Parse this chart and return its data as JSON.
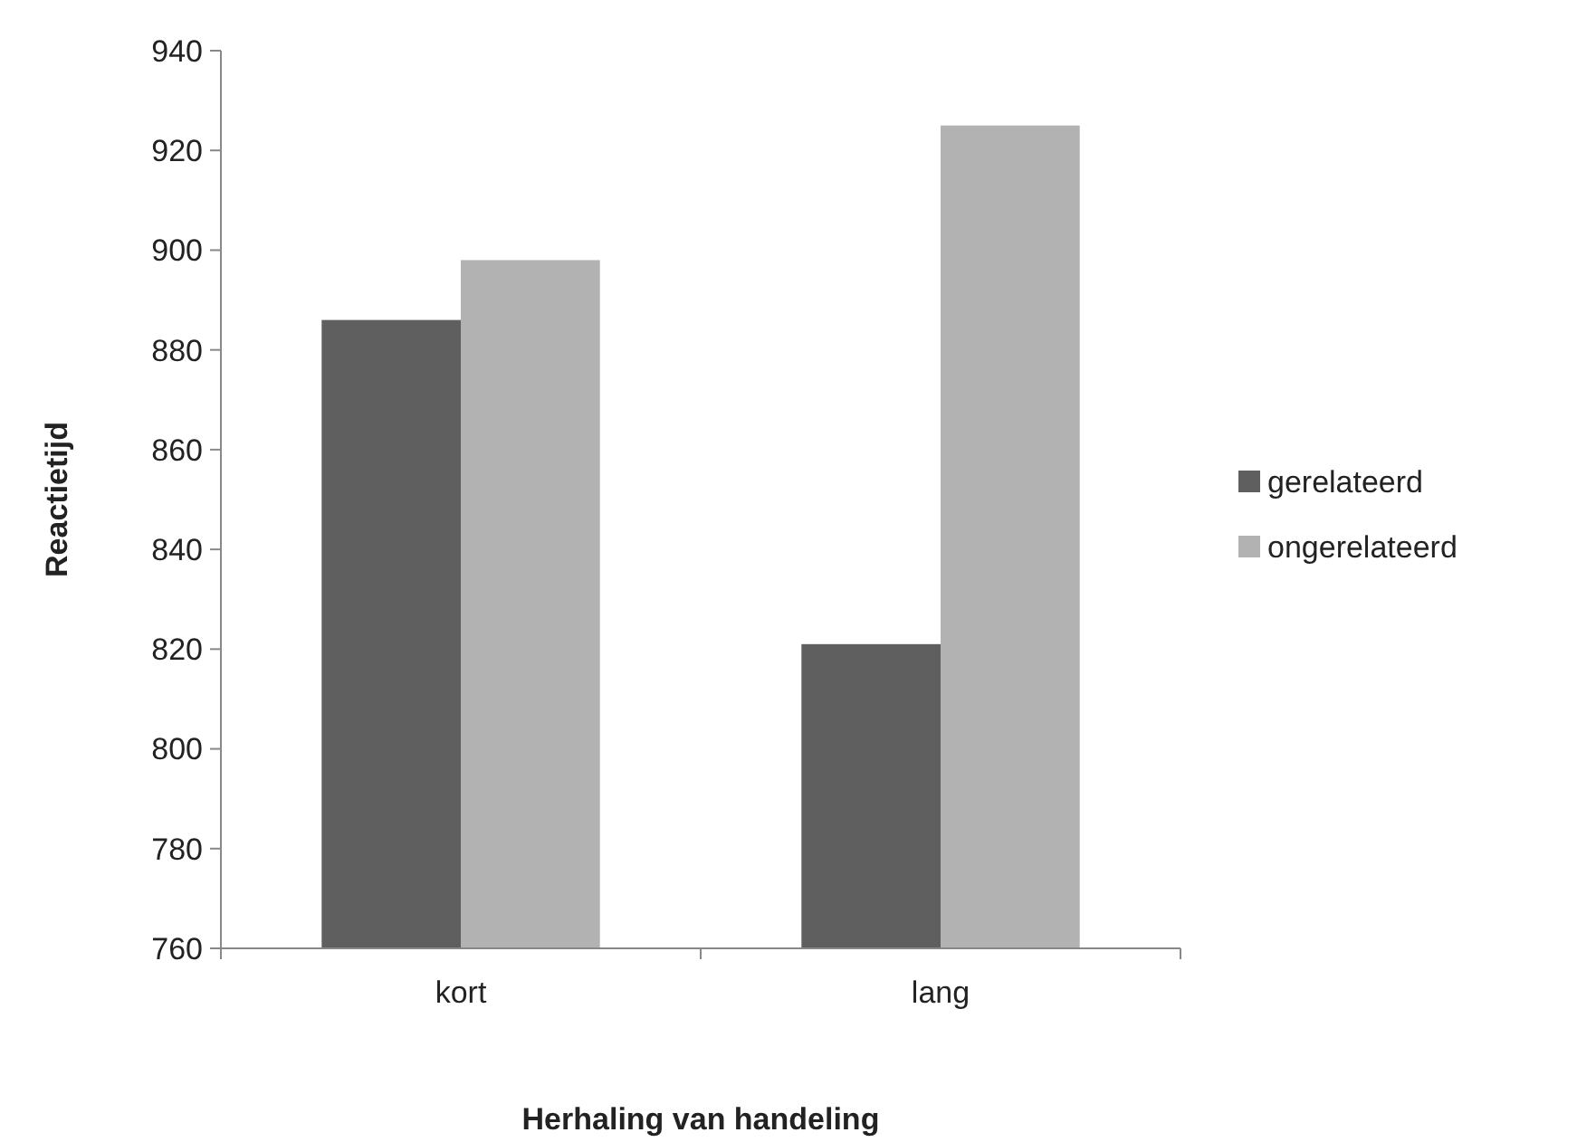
{
  "chart_data": {
    "type": "bar",
    "xlabel": "Herhaling van handeling",
    "ylabel": "Reactietijd",
    "categories": [
      "kort",
      "lang"
    ],
    "series": [
      {
        "name": "gerelateerd",
        "color": "#5f5f5f",
        "values": [
          886,
          821
        ]
      },
      {
        "name": "ongerelateerd",
        "color": "#b2b2b2",
        "values": [
          898,
          925
        ]
      }
    ],
    "ylim": [
      760,
      940
    ],
    "yticks": [
      760,
      780,
      800,
      820,
      840,
      860,
      880,
      900,
      920,
      940
    ],
    "grid": false,
    "legend": "right"
  }
}
